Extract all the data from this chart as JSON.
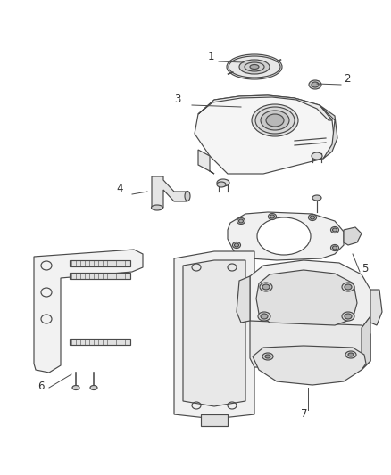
{
  "background_color": "#ffffff",
  "line_color": "#4a4a4a",
  "label_color": "#333333",
  "figsize": [
    4.38,
    5.33
  ],
  "dpi": 100,
  "label_fontsize": 8.5,
  "lw": 0.85
}
